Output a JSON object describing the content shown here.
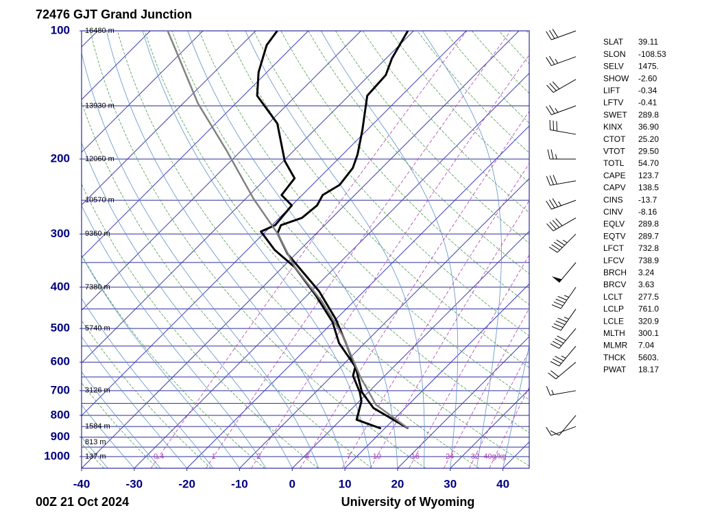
{
  "chart_data": {
    "type": "skewt",
    "title": "72476 GJT Grand Junction",
    "footer_left": "00Z 21 Oct 2024",
    "footer_right": "University of Wyoming",
    "xlim": [
      -40,
      45
    ],
    "xticks": [
      -40,
      -30,
      -20,
      -10,
      0,
      10,
      20,
      30,
      40
    ],
    "ylim": [
      1065,
      100
    ],
    "yticks": [
      100,
      200,
      300,
      400,
      500,
      600,
      700,
      800,
      900,
      1000
    ],
    "log_y": true,
    "heights": {
      "p": [
        100,
        150,
        200,
        250,
        300,
        400,
        500,
        700,
        850,
        925,
        1000
      ],
      "labels": [
        "16480 m",
        "13930 m",
        "12060 m",
        "10570 m",
        "9360 m",
        "7380 m",
        "5740 m",
        "3126 m",
        "1584 m",
        "813 m",
        "137 m"
      ]
    },
    "mixing_ratios": [
      0.4,
      1,
      2,
      4,
      7,
      10,
      16,
      24,
      32,
      {
        "value": 40,
        "label": "40g/kg"
      }
    ],
    "series": [
      {
        "color": "#000000",
        "width": 3,
        "p": [
          859,
          769,
          706,
          627,
          541,
          475,
          409,
          366,
          334,
          299,
          286,
          275,
          257,
          243,
          230,
          210,
          195,
          171,
          142,
          127,
          116,
          100
        ],
        "values": [
          14.5,
          4.0,
          -1.2,
          -6.4,
          -13.6,
          -20.1,
          -28.5,
          -35.7,
          -41.6,
          -47.4,
          -48.3,
          -45.7,
          -45.2,
          -46.1,
          -44.8,
          -45.5,
          -47.2,
          -50.9,
          -56.5,
          -56.9,
          -58.9,
          -61.1
        ]
      },
      {
        "color": "#000000",
        "width": 3,
        "p": [
          859,
          819,
          741,
          706,
          646,
          615,
          541,
          483,
          417,
          359,
          327,
          296,
          286,
          257,
          243,
          222,
          202,
          165,
          142,
          125,
          108,
          100
        ],
        "values": [
          9.3,
          3.0,
          0.4,
          -1.6,
          -6.0,
          -7.3,
          -14.9,
          -20.1,
          -28.5,
          -37.7,
          -44.8,
          -50.9,
          -49.4,
          -50.0,
          -53.9,
          -54.6,
          -59.8,
          -68.3,
          -77.4,
          -81.6,
          -85.2,
          -85.9
        ]
      },
      {
        "color": "#808080",
        "width": 2.5,
        "p": [
          859,
          755,
          650,
          521,
          433,
          359,
          299,
          248,
          191,
          148,
          100
        ],
        "values": [
          14.5,
          3.8,
          -4.4,
          -15.5,
          -25.9,
          -37.7,
          -47.4,
          -58.5,
          -72.8,
          -87.2,
          -106.7
        ]
      }
    ],
    "winds": {
      "p": [
        850,
        800,
        700,
        600,
        550,
        500,
        450,
        400,
        350,
        300,
        275,
        250,
        225,
        200,
        175,
        150,
        130,
        115,
        100
      ],
      "direction": [
        250,
        220,
        260,
        230,
        220,
        220,
        215,
        215,
        220,
        225,
        240,
        250,
        260,
        270,
        280,
        250,
        240,
        250,
        250
      ],
      "speed": [
        10,
        10,
        15,
        20,
        35,
        40,
        45,
        45,
        50,
        45,
        40,
        35,
        30,
        25,
        30,
        25,
        30,
        25,
        30
      ]
    }
  },
  "station_indices": [
    {
      "label": "SLAT",
      "value": "39.11"
    },
    {
      "label": "SLON",
      "value": "-108.53"
    },
    {
      "label": "SELV",
      "value": "1475."
    },
    {
      "label": "SHOW",
      "value": "-2.60"
    },
    {
      "label": "LIFT",
      "value": "-0.34"
    },
    {
      "label": "LFTV",
      "value": "-0.41"
    },
    {
      "label": "SWET",
      "value": "289.8"
    },
    {
      "label": "KINX",
      "value": "36.90"
    },
    {
      "label": "CTOT",
      "value": "25.20"
    },
    {
      "label": "VTOT",
      "value": "29.50"
    },
    {
      "label": "TOTL",
      "value": "54.70"
    },
    {
      "label": "CAPE",
      "value": "123.7"
    },
    {
      "label": "CAPV",
      "value": "138.5"
    },
    {
      "label": "CINS",
      "value": "-13.7"
    },
    {
      "label": "CINV",
      "value": "-8.16"
    },
    {
      "label": "EQLV",
      "value": "289.8"
    },
    {
      "label": "EQTV",
      "value": "289.7"
    },
    {
      "label": "LFCT",
      "value": "732.8"
    },
    {
      "label": "LFCV",
      "value": "738.9"
    },
    {
      "label": "BRCH",
      "value": "3.24"
    },
    {
      "label": "BRCV",
      "value": "3.63"
    },
    {
      "label": "LCLT",
      "value": "277.5"
    },
    {
      "label": "LCLP",
      "value": "761.0"
    },
    {
      "label": "LCLE",
      "value": "320.9"
    },
    {
      "label": "MLTH",
      "value": "300.1"
    },
    {
      "label": "MLMR",
      "value": "7.04"
    },
    {
      "label": "THCK",
      "value": "5603."
    },
    {
      "label": "PWAT",
      "value": "18.17"
    }
  ]
}
